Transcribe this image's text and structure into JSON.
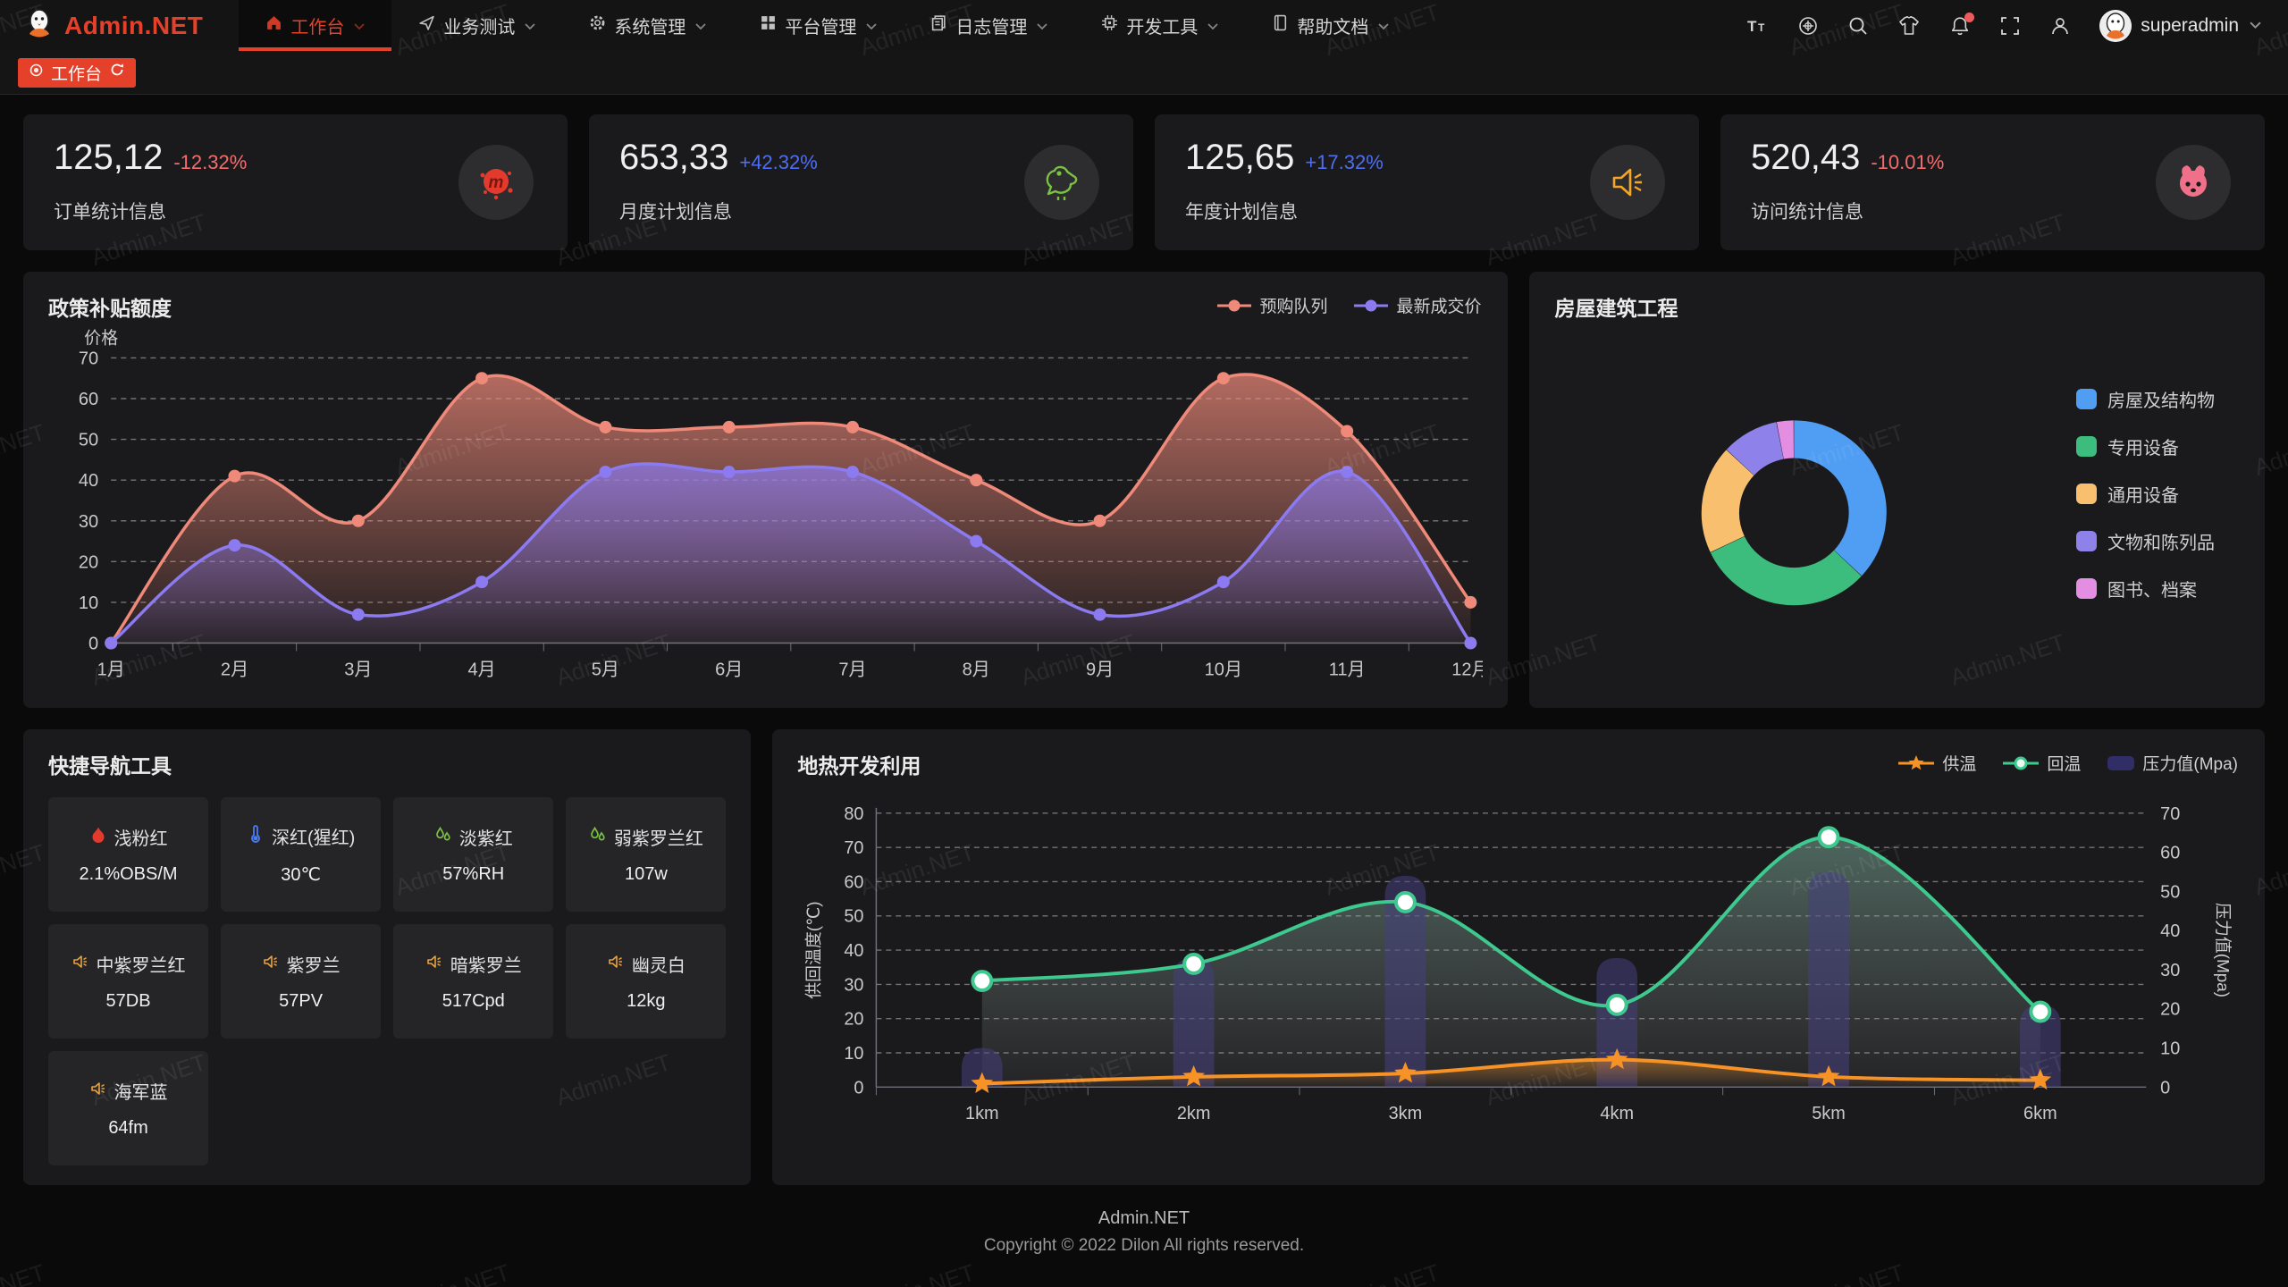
{
  "watermark": "Admin.NET",
  "colors": {
    "accent_red": "#e5402a",
    "delta_down": "#f56c6c",
    "delta_up": "#4e6ef2",
    "card_bg": "#1a1a1c"
  },
  "header": {
    "logo_text": "Admin.NET",
    "menu": [
      {
        "label": "工作台",
        "icon": "home-icon",
        "active": true
      },
      {
        "label": "业务测试",
        "icon": "plane-icon",
        "active": false
      },
      {
        "label": "系统管理",
        "icon": "gear-icon",
        "active": false
      },
      {
        "label": "平台管理",
        "icon": "grid-icon",
        "active": false
      },
      {
        "label": "日志管理",
        "icon": "log-icon",
        "active": false
      },
      {
        "label": "开发工具",
        "icon": "chip-icon",
        "active": false
      },
      {
        "label": "帮助文档",
        "icon": "book-icon",
        "active": false
      }
    ],
    "user": "superadmin"
  },
  "tabbar": {
    "active_tab": "工作台"
  },
  "stats": [
    {
      "value": "125,12",
      "delta": "-12.32%",
      "trend": "down",
      "label": "订单统计信息",
      "icon": "meetup-icon",
      "icon_color": "#e23b2e"
    },
    {
      "value": "653,33",
      "delta": "+42.32%",
      "trend": "up",
      "label": "月度计划信息",
      "icon": "chicken-icon",
      "icon_color": "#7bc143"
    },
    {
      "value": "125,65",
      "delta": "+17.32%",
      "trend": "up",
      "label": "年度计划信息",
      "icon": "speaker-icon",
      "icon_color": "#f5a623"
    },
    {
      "value": "520,43",
      "delta": "-10.01%",
      "trend": "down",
      "label": "访问统计信息",
      "icon": "cat-icon",
      "icon_color": "#f0708a"
    }
  ],
  "chart_data": [
    {
      "id": "subsidy",
      "type": "area",
      "title": "政策补贴额度",
      "ylabel": "价格",
      "ylim": [
        0,
        70
      ],
      "ytick_step": 10,
      "grid": "dashed",
      "legend_position": "top-right",
      "categories": [
        "1月",
        "2月",
        "3月",
        "4月",
        "5月",
        "6月",
        "7月",
        "8月",
        "9月",
        "10月",
        "11月",
        "12月"
      ],
      "series": [
        {
          "name": "预购队列",
          "color": "#ef8a7a",
          "values": [
            0,
            41,
            30,
            65,
            53,
            53,
            53,
            40,
            30,
            65,
            52,
            10
          ]
        },
        {
          "name": "最新成交价",
          "color": "#8b7af0",
          "values": [
            0,
            24,
            7,
            15,
            42,
            42,
            42,
            25,
            7,
            15,
            42,
            0
          ]
        }
      ]
    },
    {
      "id": "housing",
      "type": "pie",
      "title": "房屋建筑工程",
      "donut": true,
      "legend_position": "right",
      "labels": [
        "房屋及结构物",
        "专用设备",
        "通用设备",
        "文物和陈列品",
        "图书、档案"
      ],
      "values": [
        37,
        31,
        19,
        10,
        3
      ],
      "colors": [
        "#4f9ef3",
        "#3dbd7d",
        "#f8c06e",
        "#8f81ea",
        "#e38ee3"
      ]
    },
    {
      "id": "geothermal",
      "type": "mixed",
      "title": "地热开发利用",
      "categories": [
        "1km",
        "2km",
        "3km",
        "4km",
        "5km",
        "6km"
      ],
      "ylabel_left": "供回温度(℃)",
      "ylabel_right": "压力值(Mpa)",
      "ylim_left": [
        0,
        80
      ],
      "ylim_right": [
        0,
        70
      ],
      "grid": "dashed",
      "legend_position": "top-right",
      "series": [
        {
          "name": "供温",
          "type": "line",
          "marker": "star",
          "axis": "left",
          "color": "#f79326",
          "values": [
            1,
            3,
            4,
            8,
            3,
            2
          ]
        },
        {
          "name": "回温",
          "type": "line",
          "marker": "circle",
          "axis": "left",
          "color": "#3ec98f",
          "values": [
            31,
            36,
            54,
            24,
            73,
            22
          ]
        },
        {
          "name": "压力值(Mpa)",
          "type": "bar",
          "axis": "right",
          "color": "#45407e",
          "values": [
            10,
            33,
            54,
            33,
            55,
            21
          ]
        }
      ]
    }
  ],
  "quick_nav": {
    "title": "快捷导航工具",
    "items": [
      {
        "name": "浅粉红",
        "value": "2.1%OBS/M",
        "icon": "fire-icon"
      },
      {
        "name": "深红(猩红)",
        "value": "30℃",
        "icon": "thermometer-icon"
      },
      {
        "name": "淡紫红",
        "value": "57%RH",
        "icon": "humidity-icon"
      },
      {
        "name": "弱紫罗兰红",
        "value": "107w",
        "icon": "humidity-icon"
      },
      {
        "name": "中紫罗兰红",
        "value": "57DB",
        "icon": "speaker-icon"
      },
      {
        "name": "紫罗兰",
        "value": "57PV",
        "icon": "speaker-icon"
      },
      {
        "name": "暗紫罗兰",
        "value": "517Cpd",
        "icon": "speaker-icon"
      },
      {
        "name": "幽灵白",
        "value": "12kg",
        "icon": "speaker-icon"
      },
      {
        "name": "海军蓝",
        "value": "64fm",
        "icon": "speaker-icon"
      }
    ]
  },
  "footer": {
    "line1": "Admin.NET",
    "line2": "Copyright © 2022 Dilon All rights reserved."
  }
}
